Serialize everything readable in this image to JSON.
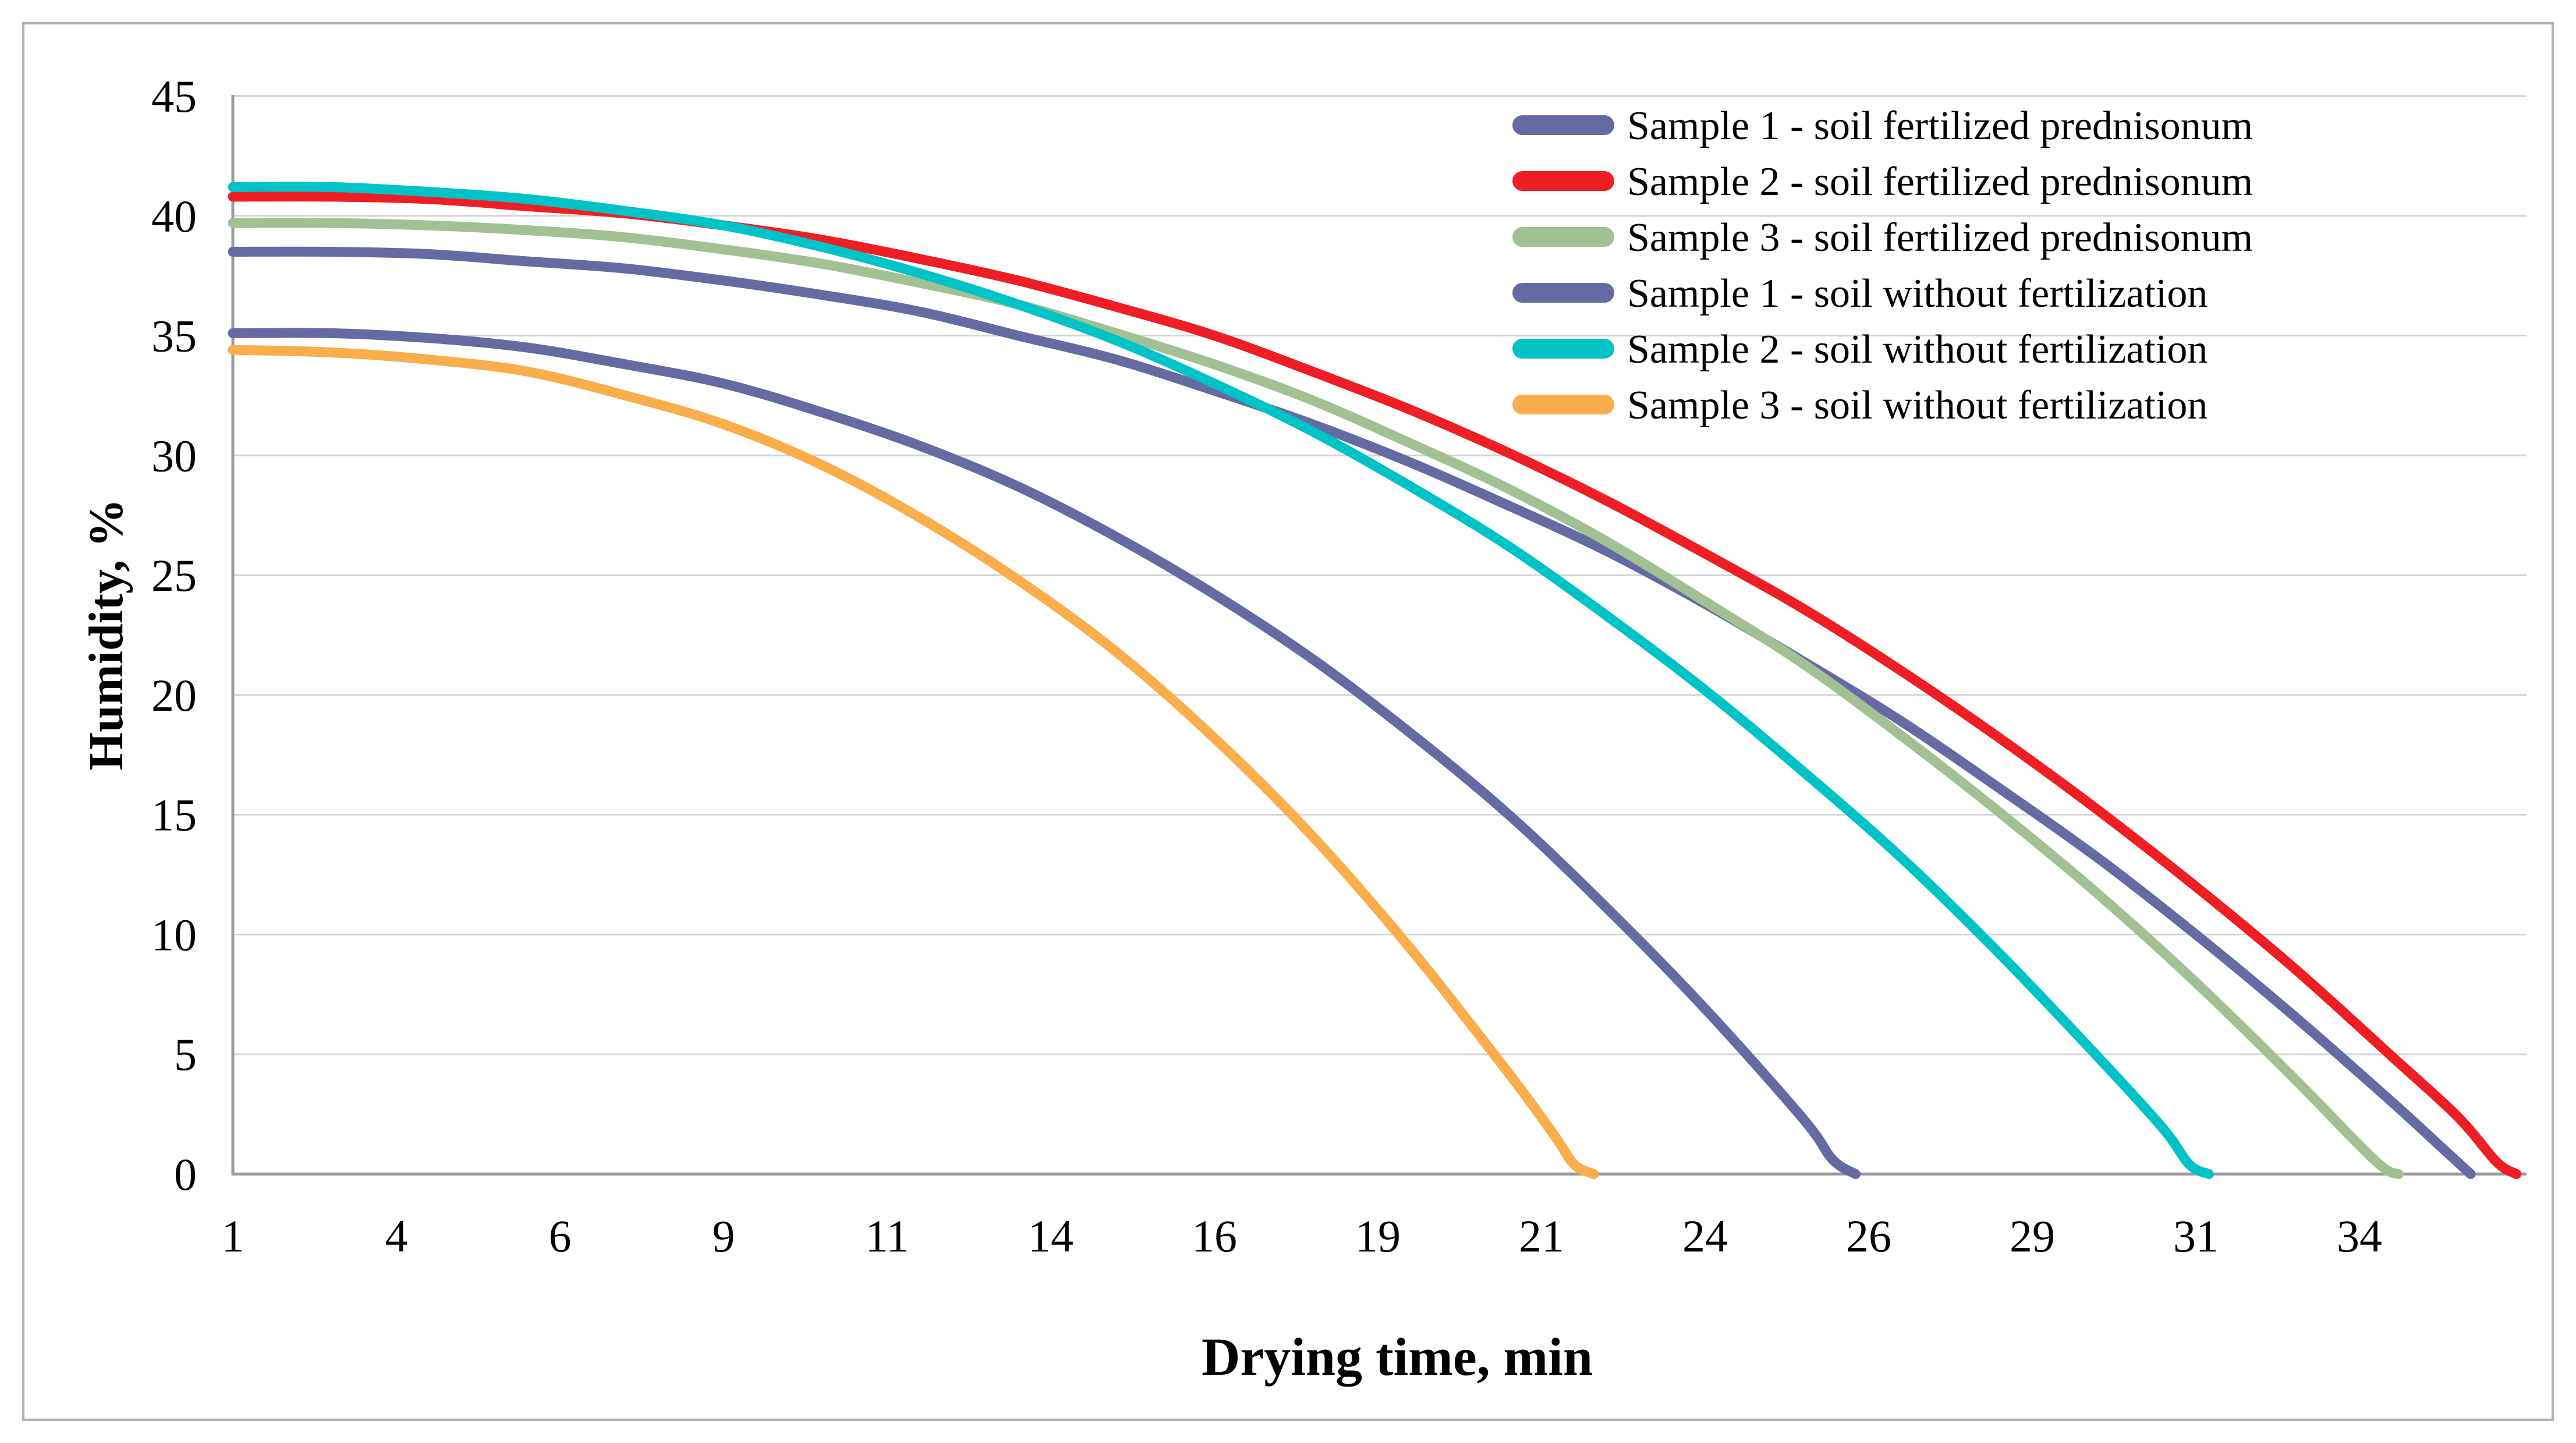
{
  "figure": {
    "background": "#ffffff",
    "border_color": "#b4b4b4",
    "gridline_color": "#d2d2d2",
    "axis_line_color": "#9a9a9a",
    "text_color": "#000000"
  },
  "chart_data": {
    "type": "line",
    "title": "",
    "xlabel": "Drying time, min",
    "ylabel": "Humidity, %",
    "ylim": [
      0,
      45
    ],
    "y_ticks": [
      0,
      5,
      10,
      15,
      20,
      25,
      30,
      35,
      40,
      45
    ],
    "xlim": [
      1,
      36.5
    ],
    "x_tick_positions": [
      1,
      3.5,
      6,
      8.5,
      11,
      13.5,
      16,
      18.5,
      21,
      23.5,
      26,
      28.5,
      31,
      33.5
    ],
    "x_tick_labels": [
      "1",
      "4",
      "6",
      "9",
      "11",
      "14",
      "16",
      "19",
      "21",
      "24",
      "26",
      "29",
      "31",
      "34"
    ],
    "grid": "horizontal",
    "legend_position": "inside-top-right",
    "series": [
      {
        "id": "s1-fertilized",
        "name": "Sample 1 - soil fertilized prednisonum",
        "color": "#656aa3",
        "points": [
          [
            1,
            38.5
          ],
          [
            2.5,
            38.5
          ],
          [
            4,
            38.4
          ],
          [
            5.5,
            38.1
          ],
          [
            7,
            37.8
          ],
          [
            8.5,
            37.3
          ],
          [
            10,
            36.7
          ],
          [
            11.5,
            36.0
          ],
          [
            13,
            35.0
          ],
          [
            14.5,
            34.0
          ],
          [
            16,
            32.7
          ],
          [
            17.5,
            31.3
          ],
          [
            19,
            29.7
          ],
          [
            20.5,
            27.9
          ],
          [
            22,
            26.0
          ],
          [
            23.5,
            23.8
          ],
          [
            25,
            21.4
          ],
          [
            26.5,
            18.9
          ],
          [
            28,
            16.1
          ],
          [
            29.5,
            13.2
          ],
          [
            31,
            10.0
          ],
          [
            32.5,
            6.6
          ],
          [
            34,
            3.0
          ],
          [
            34.8,
            1.0
          ],
          [
            35.2,
            0
          ]
        ]
      },
      {
        "id": "s2-fertilized",
        "name": "Sample 2 - soil fertilized prednisonum",
        "color": "#ee1e24",
        "points": [
          [
            1,
            40.8
          ],
          [
            2.5,
            40.8
          ],
          [
            4,
            40.7
          ],
          [
            5.5,
            40.4
          ],
          [
            7,
            40.1
          ],
          [
            8.5,
            39.6
          ],
          [
            10,
            39.0
          ],
          [
            11.5,
            38.2
          ],
          [
            13,
            37.3
          ],
          [
            14.5,
            36.2
          ],
          [
            16,
            35.0
          ],
          [
            17.5,
            33.5
          ],
          [
            19,
            31.9
          ],
          [
            20.5,
            30.1
          ],
          [
            22,
            28.1
          ],
          [
            23.5,
            25.9
          ],
          [
            25,
            23.6
          ],
          [
            26.5,
            21.0
          ],
          [
            28,
            18.2
          ],
          [
            29.5,
            15.2
          ],
          [
            31,
            12.0
          ],
          [
            32.5,
            8.6
          ],
          [
            34,
            4.9
          ],
          [
            35,
            2.4
          ],
          [
            35.6,
            0.5
          ],
          [
            35.9,
            0
          ]
        ]
      },
      {
        "id": "s3-fertilized",
        "name": "Sample 3 - soil fertilized prednisonum",
        "color": "#a2c094",
        "points": [
          [
            1,
            39.7
          ],
          [
            2.5,
            39.7
          ],
          [
            4,
            39.6
          ],
          [
            5.5,
            39.4
          ],
          [
            7,
            39.1
          ],
          [
            8.5,
            38.6
          ],
          [
            10,
            38.0
          ],
          [
            11.5,
            37.2
          ],
          [
            13,
            36.3
          ],
          [
            14.5,
            35.1
          ],
          [
            16,
            33.8
          ],
          [
            17.5,
            32.3
          ],
          [
            19,
            30.5
          ],
          [
            20.5,
            28.6
          ],
          [
            22,
            26.4
          ],
          [
            23.5,
            23.9
          ],
          [
            25,
            21.3
          ],
          [
            26.5,
            18.3
          ],
          [
            28,
            15.1
          ],
          [
            29.5,
            11.7
          ],
          [
            31,
            8.0
          ],
          [
            32.5,
            4.0
          ],
          [
            33.5,
            1.2
          ],
          [
            33.9,
            0.2
          ],
          [
            34.1,
            0
          ]
        ]
      },
      {
        "id": "s1-unfertilized",
        "name": "Sample 1 - soil without fertilization",
        "color": "#656aa3",
        "points": [
          [
            1,
            35.1
          ],
          [
            2.5,
            35.1
          ],
          [
            4,
            34.9
          ],
          [
            5.5,
            34.5
          ],
          [
            7,
            33.8
          ],
          [
            8.5,
            33.0
          ],
          [
            10,
            31.8
          ],
          [
            11.5,
            30.4
          ],
          [
            13,
            28.7
          ],
          [
            14.5,
            26.6
          ],
          [
            16,
            24.2
          ],
          [
            17.5,
            21.5
          ],
          [
            19,
            18.4
          ],
          [
            20.5,
            15.0
          ],
          [
            22,
            11.1
          ],
          [
            23.5,
            6.9
          ],
          [
            25,
            2.3
          ],
          [
            25.45,
            0.6
          ],
          [
            25.8,
            0
          ]
        ]
      },
      {
        "id": "s2-unfertilized",
        "name": "Sample 2 - soil without fertilization",
        "color": "#00c3c7",
        "points": [
          [
            1,
            41.2
          ],
          [
            2.5,
            41.2
          ],
          [
            4,
            41.0
          ],
          [
            5.5,
            40.7
          ],
          [
            7,
            40.2
          ],
          [
            8.5,
            39.6
          ],
          [
            10,
            38.7
          ],
          [
            11.5,
            37.6
          ],
          [
            13,
            36.3
          ],
          [
            14.5,
            34.8
          ],
          [
            16,
            33.0
          ],
          [
            17.5,
            31.0
          ],
          [
            19,
            28.7
          ],
          [
            20.5,
            26.2
          ],
          [
            22,
            23.3
          ],
          [
            23.5,
            20.2
          ],
          [
            25,
            16.8
          ],
          [
            26.5,
            13.2
          ],
          [
            28,
            9.2
          ],
          [
            29.5,
            4.9
          ],
          [
            30.5,
            1.9
          ],
          [
            30.9,
            0.4
          ],
          [
            31.2,
            0
          ]
        ]
      },
      {
        "id": "s3-unfertilized",
        "name": "Sample 3 - soil without fertilization",
        "color": "#faad4b",
        "points": [
          [
            1,
            34.4
          ],
          [
            2.5,
            34.3
          ],
          [
            4,
            34.0
          ],
          [
            5.5,
            33.5
          ],
          [
            7,
            32.5
          ],
          [
            8.5,
            31.3
          ],
          [
            10,
            29.6
          ],
          [
            11.5,
            27.4
          ],
          [
            13,
            24.8
          ],
          [
            14.5,
            21.8
          ],
          [
            16,
            18.2
          ],
          [
            17.5,
            14.1
          ],
          [
            19,
            9.4
          ],
          [
            20.5,
            4.2
          ],
          [
            21.2,
            1.6
          ],
          [
            21.5,
            0.4
          ],
          [
            21.8,
            0
          ]
        ]
      }
    ]
  }
}
